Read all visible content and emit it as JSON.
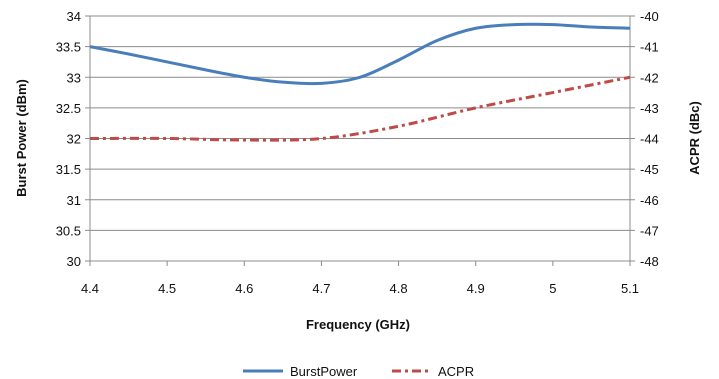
{
  "chart_data": {
    "type": "line",
    "title": "",
    "xlabel": "Frequency (GHz)",
    "ylabel_left": "Burst Power (dBm)",
    "ylabel_right": "ACPR (dBc)",
    "x_ticks": [
      "4.4",
      "4.5",
      "4.6",
      "4.7",
      "4.8",
      "4.9",
      "5",
      "5.1"
    ],
    "y_left_ticks": [
      "30",
      "30.5",
      "31",
      "31.5",
      "32",
      "32.5",
      "33",
      "33.5",
      "34"
    ],
    "y_right_ticks": [
      "-48",
      "-47",
      "-46",
      "-45",
      "-44",
      "-43",
      "-42",
      "-41",
      "-40"
    ],
    "xlim": [
      4.4,
      5.1
    ],
    "ylim_left": [
      30,
      34
    ],
    "ylim_right": [
      -48,
      -40
    ],
    "grid": "horizontal",
    "legend_position": "bottom",
    "series": [
      {
        "name": "BurstPower",
        "axis": "left",
        "style": "solid",
        "color": "#4a7ebb",
        "x": [
          4.4,
          4.45,
          4.5,
          4.55,
          4.6,
          4.65,
          4.7,
          4.75,
          4.8,
          4.85,
          4.9,
          4.95,
          5.0,
          5.05,
          5.1
        ],
        "values": [
          33.5,
          33.38,
          33.25,
          33.12,
          33.0,
          32.92,
          32.9,
          33.0,
          33.28,
          33.6,
          33.8,
          33.86,
          33.86,
          33.82,
          33.8
        ]
      },
      {
        "name": "ACPR",
        "axis": "right",
        "style": "dash-dot",
        "color": "#be4b48",
        "x": [
          4.4,
          4.5,
          4.6,
          4.7,
          4.8,
          4.9,
          5.0,
          5.1
        ],
        "values": [
          -44.0,
          -44.0,
          -44.05,
          -44.0,
          -43.6,
          -43.0,
          -42.5,
          -42.0
        ]
      }
    ]
  }
}
